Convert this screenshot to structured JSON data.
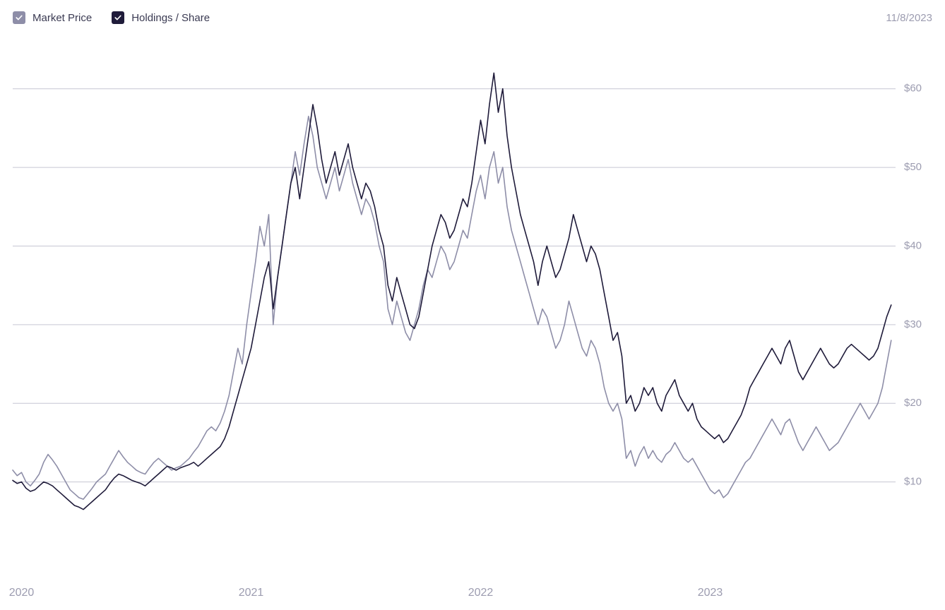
{
  "header": {
    "date_label": "11/8/2023"
  },
  "legend": {
    "items": [
      {
        "label": "Market Price",
        "checkbox_bg": "#8e8ea8",
        "check_color": "#ffffff",
        "name": "legend-market-price"
      },
      {
        "label": "Holdings / Share",
        "checkbox_bg": "#1f1b3a",
        "check_color": "#ffffff",
        "name": "legend-holdings-share"
      }
    ]
  },
  "chart": {
    "type": "line",
    "background_color": "#ffffff",
    "grid_color": "#8e8ea8",
    "label_color": "#9c9cb0",
    "line_width": 1.6,
    "series_colors": {
      "market_price": "#8e8ea8",
      "holdings_share": "#1f1b3a"
    },
    "x": {
      "min": 0,
      "max": 200,
      "ticks": [
        {
          "pos": 2,
          "label": "2020"
        },
        {
          "pos": 54,
          "label": "2021"
        },
        {
          "pos": 106,
          "label": "2022"
        },
        {
          "pos": 158,
          "label": "2023"
        }
      ]
    },
    "y": {
      "min": 0,
      "max": 65,
      "ticks": [
        {
          "v": 10,
          "label": "$10"
        },
        {
          "v": 20,
          "label": "$20"
        },
        {
          "v": 30,
          "label": "$30"
        },
        {
          "v": 40,
          "label": "$40"
        },
        {
          "v": 50,
          "label": "$50"
        },
        {
          "v": 60,
          "label": "$60"
        }
      ]
    },
    "series": {
      "market_price": [
        11.5,
        10.8,
        11.2,
        10.0,
        9.5,
        10.2,
        11.0,
        12.5,
        13.5,
        12.8,
        12.0,
        11.0,
        10.0,
        9.0,
        8.5,
        8.0,
        7.8,
        8.5,
        9.2,
        10.0,
        10.5,
        11.0,
        12.0,
        13.0,
        14.0,
        13.2,
        12.5,
        12.0,
        11.5,
        11.2,
        11.0,
        11.8,
        12.5,
        13.0,
        12.5,
        12.0,
        11.5,
        11.8,
        12.0,
        12.5,
        13.0,
        13.8,
        14.5,
        15.5,
        16.5,
        17.0,
        16.5,
        17.5,
        19.0,
        21.0,
        24.0,
        27.0,
        25.0,
        30.0,
        34.0,
        38.0,
        42.5,
        40.0,
        44.0,
        30.0,
        36.0,
        40.0,
        44.0,
        48.0,
        52.0,
        49.0,
        53.0,
        56.5,
        54.0,
        50.0,
        48.0,
        46.0,
        48.0,
        50.0,
        47.0,
        49.0,
        51.0,
        48.0,
        46.0,
        44.0,
        46.0,
        45.0,
        43.0,
        40.0,
        38.0,
        32.0,
        30.0,
        33.0,
        31.0,
        29.0,
        28.0,
        30.0,
        32.0,
        35.0,
        37.0,
        36.0,
        38.0,
        40.0,
        39.0,
        37.0,
        38.0,
        40.0,
        42.0,
        41.0,
        44.0,
        47.0,
        49.0,
        46.0,
        50.0,
        52.0,
        48.0,
        50.0,
        45.0,
        42.0,
        40.0,
        38.0,
        36.0,
        34.0,
        32.0,
        30.0,
        32.0,
        31.0,
        29.0,
        27.0,
        28.0,
        30.0,
        33.0,
        31.0,
        29.0,
        27.0,
        26.0,
        28.0,
        27.0,
        25.0,
        22.0,
        20.0,
        19.0,
        20.0,
        18.0,
        13.0,
        14.0,
        12.0,
        13.5,
        14.5,
        13.0,
        14.0,
        13.0,
        12.5,
        13.5,
        14.0,
        15.0,
        14.0,
        13.0,
        12.5,
        13.0,
        12.0,
        11.0,
        10.0,
        9.0,
        8.5,
        9.0,
        8.0,
        8.5,
        9.5,
        10.5,
        11.5,
        12.5,
        13.0,
        14.0,
        15.0,
        16.0,
        17.0,
        18.0,
        17.0,
        16.0,
        17.5,
        18.0,
        16.5,
        15.0,
        14.0,
        15.0,
        16.0,
        17.0,
        16.0,
        15.0,
        14.0,
        14.5,
        15.0,
        16.0,
        17.0,
        18.0,
        19.0,
        20.0,
        19.0,
        18.0,
        19.0,
        20.0,
        22.0,
        25.0,
        28.0
      ],
      "holdings_share": [
        10.2,
        9.8,
        10.0,
        9.2,
        8.8,
        9.0,
        9.5,
        10.0,
        9.8,
        9.5,
        9.0,
        8.5,
        8.0,
        7.5,
        7.0,
        6.8,
        6.5,
        7.0,
        7.5,
        8.0,
        8.5,
        9.0,
        9.8,
        10.5,
        11.0,
        10.8,
        10.5,
        10.2,
        10.0,
        9.8,
        9.5,
        10.0,
        10.5,
        11.0,
        11.5,
        12.0,
        11.8,
        11.5,
        11.8,
        12.0,
        12.2,
        12.5,
        12.0,
        12.5,
        13.0,
        13.5,
        14.0,
        14.5,
        15.5,
        17.0,
        19.0,
        21.0,
        23.0,
        25.0,
        27.0,
        30.0,
        33.0,
        36.0,
        38.0,
        32.0,
        36.0,
        40.0,
        44.0,
        48.0,
        50.0,
        46.0,
        50.0,
        54.0,
        58.0,
        55.0,
        51.0,
        48.0,
        50.0,
        52.0,
        49.0,
        51.0,
        53.0,
        50.0,
        48.0,
        46.0,
        48.0,
        47.0,
        45.0,
        42.0,
        40.0,
        35.0,
        33.0,
        36.0,
        34.0,
        32.0,
        30.0,
        29.5,
        31.0,
        34.0,
        37.0,
        40.0,
        42.0,
        44.0,
        43.0,
        41.0,
        42.0,
        44.0,
        46.0,
        45.0,
        48.0,
        52.0,
        56.0,
        53.0,
        58.0,
        62.0,
        57.0,
        60.0,
        54.0,
        50.0,
        47.0,
        44.0,
        42.0,
        40.0,
        38.0,
        35.0,
        38.0,
        40.0,
        38.0,
        36.0,
        37.0,
        39.0,
        41.0,
        44.0,
        42.0,
        40.0,
        38.0,
        40.0,
        39.0,
        37.0,
        34.0,
        31.0,
        28.0,
        29.0,
        26.0,
        20.0,
        21.0,
        19.0,
        20.0,
        22.0,
        21.0,
        22.0,
        20.0,
        19.0,
        21.0,
        22.0,
        23.0,
        21.0,
        20.0,
        19.0,
        20.0,
        18.0,
        17.0,
        16.5,
        16.0,
        15.5,
        16.0,
        15.0,
        15.5,
        16.5,
        17.5,
        18.5,
        20.0,
        22.0,
        23.0,
        24.0,
        25.0,
        26.0,
        27.0,
        26.0,
        25.0,
        27.0,
        28.0,
        26.0,
        24.0,
        23.0,
        24.0,
        25.0,
        26.0,
        27.0,
        26.0,
        25.0,
        24.5,
        25.0,
        26.0,
        27.0,
        27.5,
        27.0,
        26.5,
        26.0,
        25.5,
        26.0,
        27.0,
        29.0,
        31.0,
        32.5
      ]
    }
  }
}
